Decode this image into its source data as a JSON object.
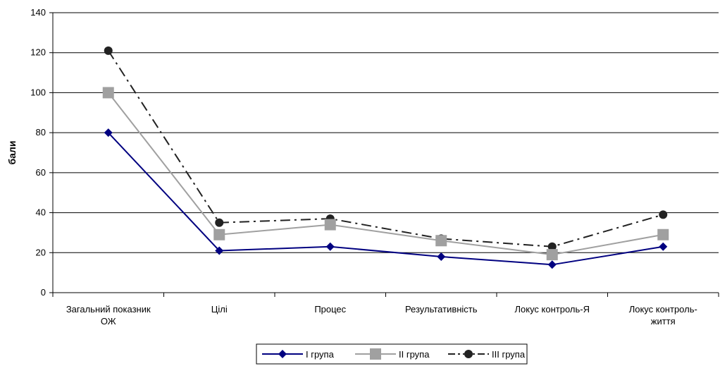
{
  "chart_data": {
    "type": "line",
    "categories": [
      [
        "Загальний показник",
        "ОЖ"
      ],
      [
        "Цілі"
      ],
      [
        "Процес"
      ],
      [
        "Результативність"
      ],
      [
        "Локус контроль-Я"
      ],
      [
        "Локус контроль-",
        "життя"
      ]
    ],
    "ylabel": "бали",
    "xlabel": "",
    "ylim": [
      0,
      140
    ],
    "yticks": [
      0,
      20,
      40,
      60,
      80,
      100,
      120,
      140
    ],
    "grid": true,
    "legend_position": "bottom",
    "series": [
      {
        "name": "I група",
        "values": [
          80,
          21,
          23,
          18,
          14,
          23
        ],
        "color": "#000080",
        "marker": "diamond",
        "dash": "solid"
      },
      {
        "name": "II група",
        "values": [
          100,
          29,
          34,
          26,
          19,
          29
        ],
        "color": "#a0a0a0",
        "marker": "square",
        "dash": "solid"
      },
      {
        "name": "III група",
        "values": [
          121,
          35,
          37,
          27,
          23,
          39
        ],
        "color": "#222222",
        "marker": "circle",
        "dash": "dashdot"
      }
    ]
  }
}
